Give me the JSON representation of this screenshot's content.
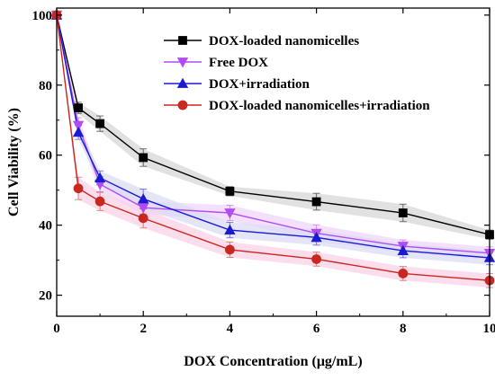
{
  "chart_data": {
    "type": "line",
    "xlabel": "DOX Concentration (μg/mL)",
    "ylabel": "Cell Viability (%)",
    "xlim": [
      0,
      10
    ],
    "ylim": [
      14,
      102
    ],
    "xticks": [
      0,
      2,
      4,
      6,
      8,
      10
    ],
    "yticks": [
      20,
      40,
      60,
      80,
      100
    ],
    "grid": false,
    "legend_position": "top-right",
    "series": [
      {
        "name": "DOX-loaded nanomicelles",
        "color": "#000000",
        "band_color": "#d7d7d7",
        "marker": "square",
        "x": [
          0,
          0.5,
          1,
          2,
          4,
          6,
          8,
          10
        ],
        "y": [
          100,
          73.5,
          69,
          59.3,
          49.7,
          46.7,
          43.5,
          37.3
        ],
        "error": [
          0,
          1.6,
          2.2,
          2.5,
          1.3,
          2.4,
          2.5,
          1.3
        ]
      },
      {
        "name": "Free DOX",
        "color": "#b24cf0",
        "band_color": "#edd6fb",
        "marker": "triangle-down",
        "x": [
          0,
          0.5,
          1,
          2,
          4,
          6,
          8,
          10
        ],
        "y": [
          100,
          68.5,
          51.7,
          45,
          43.5,
          37.7,
          34,
          32
        ],
        "error": [
          0,
          2.2,
          2.2,
          1.8,
          2.2,
          2.4,
          1.8,
          1.8
        ]
      },
      {
        "name": "DOX+irradiation",
        "color": "#1a1ad4",
        "band_color": "#dcdcf6",
        "marker": "triangle-up",
        "x": [
          0,
          0.5,
          1,
          2,
          4,
          6,
          8,
          10
        ],
        "y": [
          100,
          66.5,
          53.5,
          47.5,
          38.6,
          36.5,
          32.7,
          30.7
        ],
        "error": [
          0,
          2.0,
          2.0,
          2.8,
          2.2,
          2.2,
          2.0,
          2.0
        ]
      },
      {
        "name": "DOX-loaded nanomicelles+irradiation",
        "color": "#c8281e",
        "band_color": "#fbd2e8",
        "marker": "circle",
        "x": [
          0,
          0.5,
          1,
          2,
          4,
          6,
          8,
          10
        ],
        "y": [
          100,
          50.5,
          46.8,
          42,
          33,
          30.3,
          26.2,
          24.2
        ],
        "error": [
          0,
          3.2,
          2.6,
          2.8,
          2.2,
          2.0,
          2.0,
          2.0
        ]
      }
    ]
  }
}
